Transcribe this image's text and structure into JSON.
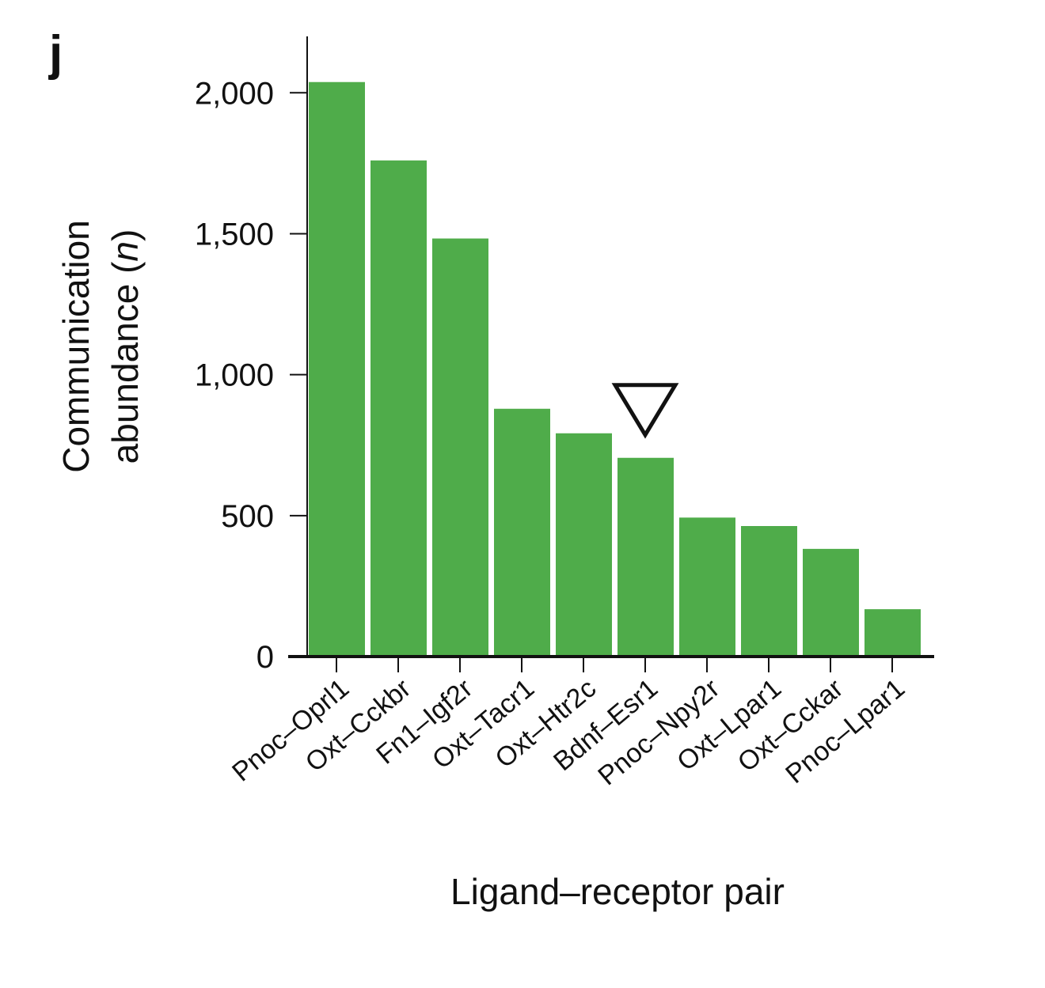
{
  "panel_label": "j",
  "chart_data": {
    "type": "bar",
    "title": "",
    "xlabel": "Ligand–receptor pair",
    "ylabel_line1": "Communication",
    "ylabel_line2_prefix": "abundance (",
    "ylabel_line2_italic": "n",
    "ylabel_line2_suffix": ")",
    "categories": [
      "Pnoc–Oprl1",
      "Oxt–Cckbr",
      "Fn1–Igf2r",
      "Oxt–Tacr1",
      "Oxt–Htr2c",
      "Bdnf–Esr1",
      "Pnoc–Npy2r",
      "Oxt–Lpar1",
      "Oxt–Cckar",
      "Pnoc–Lpar1"
    ],
    "values": [
      2038,
      1760,
      1483,
      879,
      792,
      705,
      493,
      463,
      382,
      168
    ],
    "ylim": [
      0,
      2200
    ],
    "yticks": [
      0,
      500,
      1000,
      1500,
      2000
    ],
    "ytick_labels": [
      "0",
      "500",
      "1,000",
      "1,500",
      "2,000"
    ],
    "bar_color": "#4fac4a",
    "grid": false,
    "annotations": [
      {
        "type": "open-down-triangle",
        "category": "Bdnf–Esr1"
      }
    ]
  }
}
